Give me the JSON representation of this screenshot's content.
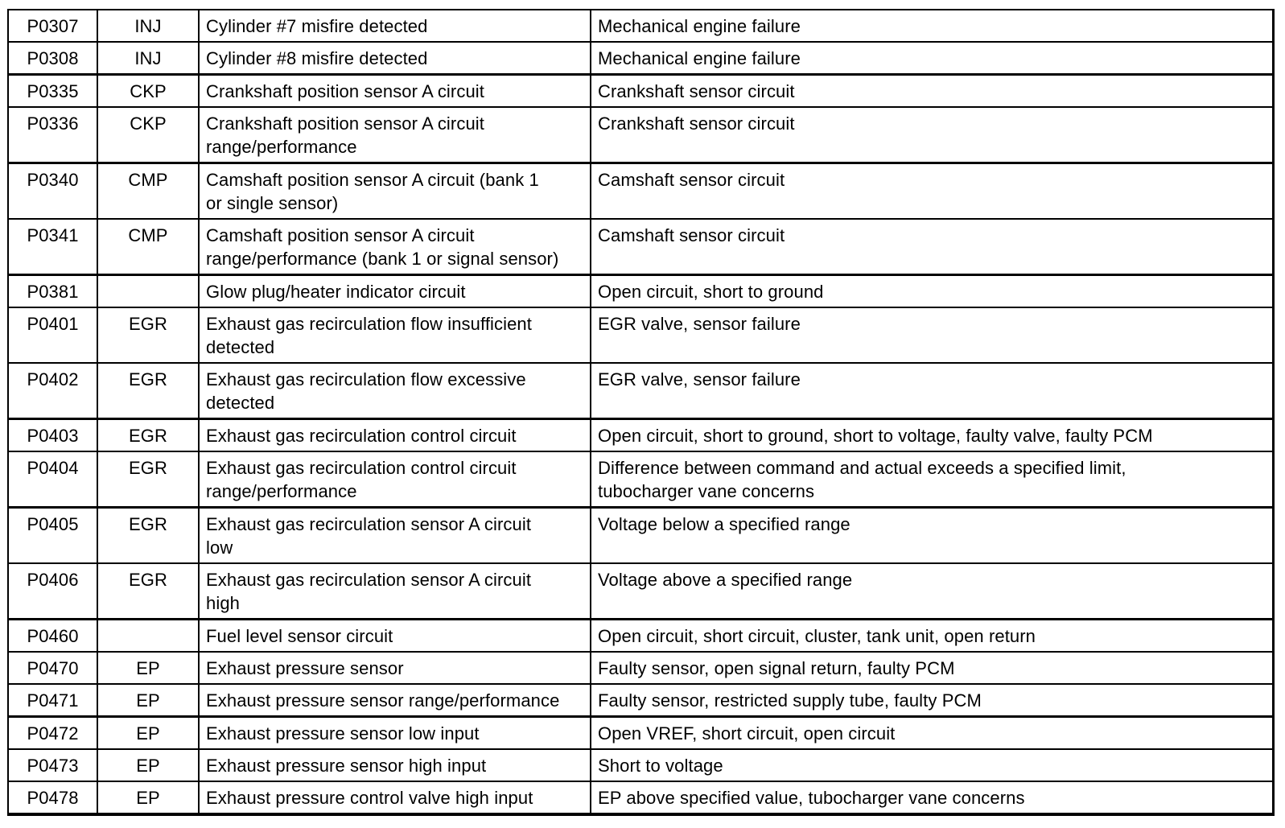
{
  "colors": {
    "background": "#ffffff",
    "border": "#000000",
    "text": "#000000"
  },
  "table": {
    "kind": "diagnostic-trouble-codes",
    "columns": [
      "code",
      "abbr",
      "description",
      "cause"
    ],
    "rows": [
      {
        "code": "P0307",
        "abbr": "INJ",
        "description": [
          "Cylinder #7 misfire detected"
        ],
        "cause": [
          "Mechanical engine failure"
        ],
        "group_start": false,
        "size": "single"
      },
      {
        "code": "P0308",
        "abbr": "INJ",
        "description": [
          "Cylinder #8 misfire detected"
        ],
        "cause": [
          "Mechanical engine failure"
        ],
        "group_start": false,
        "size": "single"
      },
      {
        "code": "P0335",
        "abbr": "CKP",
        "description": [
          "Crankshaft position sensor A circuit"
        ],
        "cause": [
          "Crankshaft sensor circuit"
        ],
        "group_start": true,
        "size": "single"
      },
      {
        "code": "P0336",
        "abbr": "CKP",
        "description": [
          "Crankshaft position sensor A circuit",
          "range/performance"
        ],
        "cause": [
          "Crankshaft sensor circuit"
        ],
        "group_start": false,
        "size": "double"
      },
      {
        "code": "P0340",
        "abbr": "CMP",
        "description": [
          "Camshaft position sensor A circuit (bank 1",
          "or single sensor)"
        ],
        "cause": [
          "Camshaft sensor circuit"
        ],
        "group_start": true,
        "size": "double"
      },
      {
        "code": "P0341",
        "abbr": "CMP",
        "description": [
          "Camshaft position sensor A circuit",
          "range/performance (bank 1 or signal sensor)"
        ],
        "cause": [
          "Camshaft sensor circuit"
        ],
        "group_start": false,
        "size": "double"
      },
      {
        "code": "P0381",
        "abbr": "",
        "description": [
          "Glow plug/heater indicator circuit"
        ],
        "cause": [
          "Open circuit, short to ground"
        ],
        "group_start": true,
        "size": "single"
      },
      {
        "code": "P0401",
        "abbr": "EGR",
        "description": [
          "Exhaust gas recirculation flow insufficient",
          "detected"
        ],
        "cause": [
          "EGR valve, sensor failure"
        ],
        "group_start": false,
        "size": "double"
      },
      {
        "code": "P0402",
        "abbr": "EGR",
        "description": [
          "Exhaust gas recirculation flow excessive",
          "detected"
        ],
        "cause": [
          "EGR valve, sensor failure"
        ],
        "group_start": false,
        "size": "double"
      },
      {
        "code": "P0403",
        "abbr": "EGR",
        "description": [
          "Exhaust gas recirculation control circuit"
        ],
        "cause": [
          "Open circuit, short to ground, short to voltage, faulty valve, faulty PCM"
        ],
        "group_start": true,
        "size": "single"
      },
      {
        "code": "P0404",
        "abbr": "EGR",
        "description": [
          "Exhaust gas recirculation control circuit",
          "range/performance"
        ],
        "cause": [
          "Difference between command and actual exceeds a specified limit,",
          "tubocharger vane concerns"
        ],
        "group_start": false,
        "size": "double"
      },
      {
        "code": "P0405",
        "abbr": "EGR",
        "description": [
          "Exhaust gas recirculation sensor A circuit",
          "low"
        ],
        "cause": [
          "Voltage below a specified range"
        ],
        "group_start": true,
        "size": "double"
      },
      {
        "code": "P0406",
        "abbr": "EGR",
        "description": [
          "Exhaust gas recirculation sensor A circuit",
          "high"
        ],
        "cause": [
          "Voltage above a specified range"
        ],
        "group_start": false,
        "size": "double"
      },
      {
        "code": "P0460",
        "abbr": "",
        "description": [
          "Fuel level sensor circuit"
        ],
        "cause": [
          "Open circuit, short circuit, cluster, tank unit, open return"
        ],
        "group_start": true,
        "size": "single"
      },
      {
        "code": "P0470",
        "abbr": "EP",
        "description": [
          "Exhaust pressure sensor"
        ],
        "cause": [
          "Faulty sensor, open signal return, faulty PCM"
        ],
        "group_start": false,
        "size": "single"
      },
      {
        "code": "P0471",
        "abbr": "EP",
        "description": [
          "Exhaust pressure sensor range/performance"
        ],
        "cause": [
          "Faulty sensor, restricted supply tube, faulty PCM"
        ],
        "group_start": false,
        "size": "single"
      },
      {
        "code": "P0472",
        "abbr": "EP",
        "description": [
          "Exhaust pressure sensor low input"
        ],
        "cause": [
          "Open VREF, short circuit, open circuit"
        ],
        "group_start": true,
        "size": "single"
      },
      {
        "code": "P0473",
        "abbr": "EP",
        "description": [
          "Exhaust pressure sensor high input"
        ],
        "cause": [
          "Short to voltage"
        ],
        "group_start": false,
        "size": "single"
      },
      {
        "code": "P0478",
        "abbr": "EP",
        "description": [
          "Exhaust pressure control valve high input"
        ],
        "cause": [
          "EP above specified value, tubocharger vane concerns"
        ],
        "group_start": false,
        "size": "single"
      }
    ]
  }
}
